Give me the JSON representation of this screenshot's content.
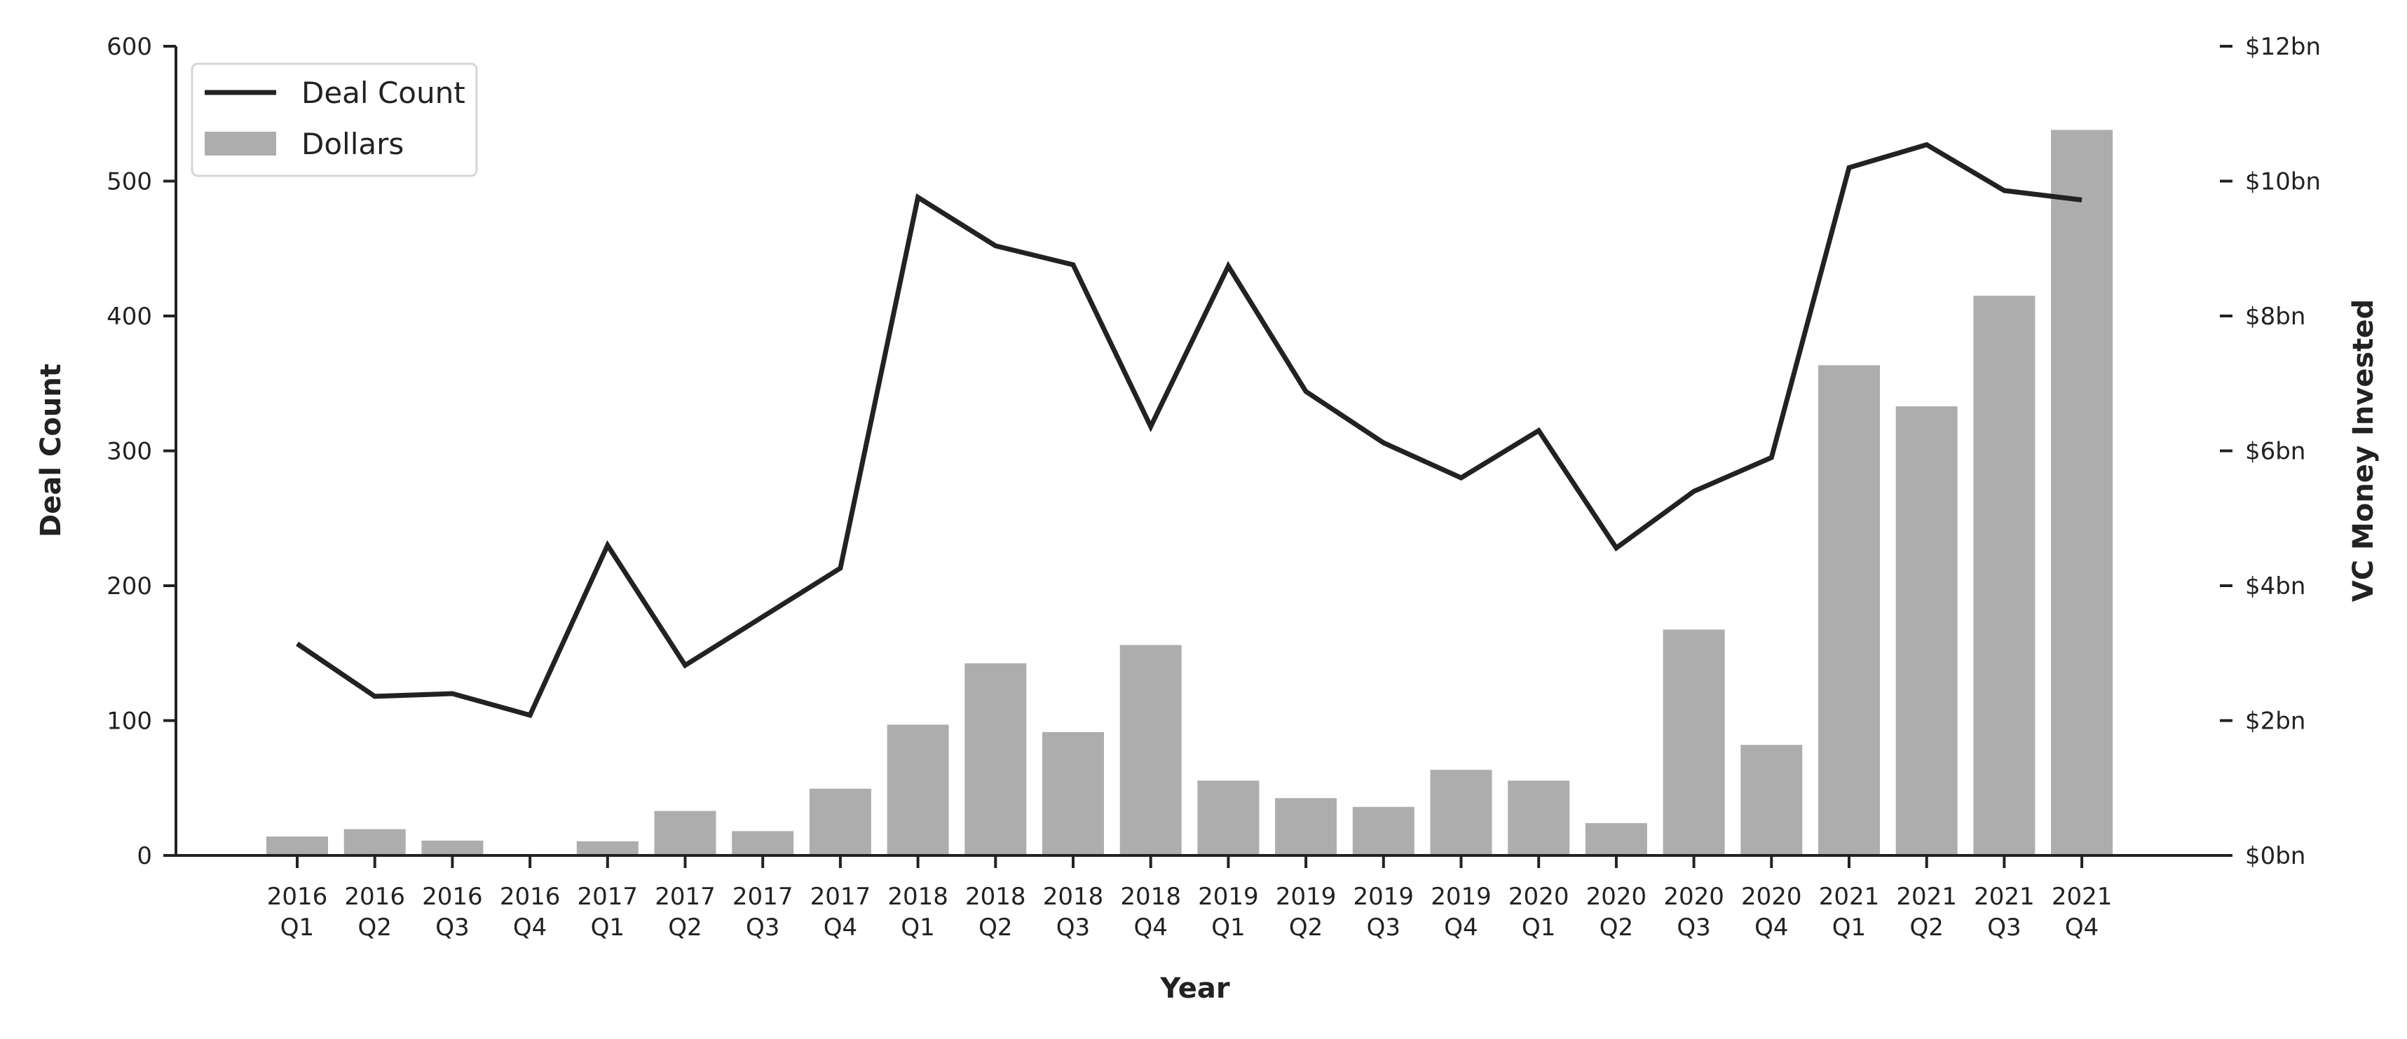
{
  "chart_data": {
    "type": "bar",
    "categories": [
      "2016 Q1",
      "2016 Q2",
      "2016 Q3",
      "2016 Q4",
      "2017 Q1",
      "2017 Q2",
      "2017 Q3",
      "2017 Q4",
      "2018 Q1",
      "2018 Q2",
      "2018 Q3",
      "2018 Q4",
      "2019 Q1",
      "2019 Q2",
      "2019 Q3",
      "2019 Q4",
      "2020 Q1",
      "2020 Q2",
      "2020 Q3",
      "2020 Q4",
      "2021 Q1",
      "2021 Q2",
      "2021 Q3",
      "2021 Q4"
    ],
    "category_lines": [
      [
        "2016",
        "Q1"
      ],
      [
        "2016",
        "Q2"
      ],
      [
        "2016",
        "Q3"
      ],
      [
        "2016",
        "Q4"
      ],
      [
        "2017",
        "Q1"
      ],
      [
        "2017",
        "Q2"
      ],
      [
        "2017",
        "Q3"
      ],
      [
        "2017",
        "Q4"
      ],
      [
        "2018",
        "Q1"
      ],
      [
        "2018",
        "Q2"
      ],
      [
        "2018",
        "Q3"
      ],
      [
        "2018",
        "Q4"
      ],
      [
        "2019",
        "Q1"
      ],
      [
        "2019",
        "Q2"
      ],
      [
        "2019",
        "Q3"
      ],
      [
        "2019",
        "Q4"
      ],
      [
        "2020",
        "Q1"
      ],
      [
        "2020",
        "Q2"
      ],
      [
        "2020",
        "Q3"
      ],
      [
        "2020",
        "Q4"
      ],
      [
        "2021",
        "Q1"
      ],
      [
        "2021",
        "Q2"
      ],
      [
        "2021",
        "Q3"
      ],
      [
        "2021",
        "Q4"
      ]
    ],
    "series": [
      {
        "name": "Deal Count",
        "type": "line",
        "axis": "left",
        "color": "#222222",
        "values": [
          157,
          118,
          120,
          104,
          230,
          141,
          177,
          213,
          488,
          452,
          438,
          318,
          437,
          344,
          306,
          280,
          315,
          228,
          270,
          295,
          510,
          527,
          493,
          486
        ]
      },
      {
        "name": "Dollars",
        "type": "bar",
        "axis": "right",
        "unit": "bn",
        "color": "#adadad",
        "values": [
          0.28,
          0.39,
          0.22,
          0.02,
          0.21,
          0.66,
          0.36,
          0.99,
          1.94,
          2.85,
          1.83,
          3.12,
          1.11,
          0.85,
          0.72,
          1.27,
          1.11,
          0.48,
          3.35,
          1.64,
          7.27,
          6.66,
          8.3,
          10.76
        ]
      }
    ],
    "xlabel": "Year",
    "ylabel": "Deal Count",
    "ylabel_right": "VC Money Invested",
    "ylim": [
      0,
      600
    ],
    "ylim_right": [
      0,
      12
    ],
    "yticks": [
      "0",
      "100",
      "200",
      "300",
      "400",
      "500",
      "600"
    ],
    "yticks_right": [
      "$0bn",
      "$2bn",
      "$4bn",
      "$6bn",
      "$8bn",
      "$10bn",
      "$12bn"
    ],
    "legend": {
      "placement": "top-left",
      "entries": [
        "Deal Count",
        "Dollars"
      ]
    },
    "grid": false
  }
}
